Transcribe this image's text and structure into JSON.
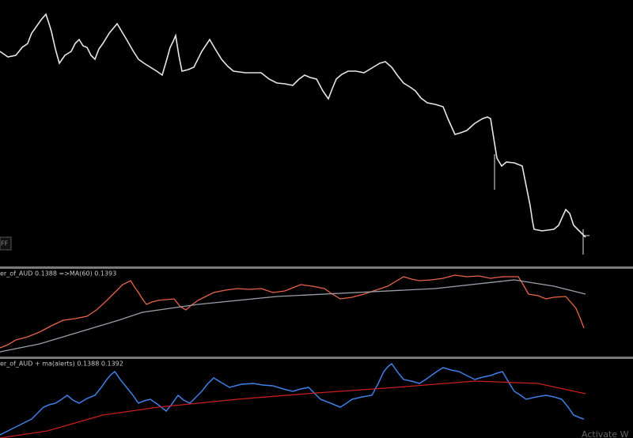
{
  "panels": [
    {
      "label": "er_of_AUD 0.1388  =>MA(60) 0.1393"
    },
    {
      "label": "er_of_AUD + ma(alerts) 0.1388 0.1392"
    }
  ],
  "button": "FF",
  "watermark": "Activate W"
}
